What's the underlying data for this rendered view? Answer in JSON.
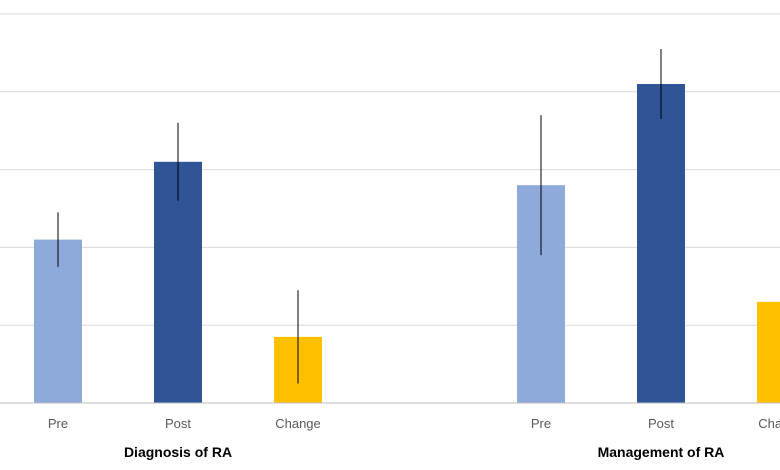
{
  "chart_data": {
    "type": "bar",
    "groups": [
      {
        "label": "Diagnosis of RA",
        "categories": [
          "Pre",
          "Post",
          "Change"
        ],
        "values": [
          2.1,
          3.1,
          0.85
        ],
        "error": [
          0.35,
          0.5,
          0.6
        ]
      },
      {
        "label": "Management of RA",
        "categories": [
          "Pre",
          "Post",
          "Change"
        ],
        "values": [
          2.8,
          4.1,
          1.3
        ],
        "error": [
          0.9,
          0.45,
          0
        ]
      }
    ],
    "colors": {
      "Pre": "#8eaadb",
      "Post": "#2f5597",
      "Change": "#ffc000",
      "error_bar": "#000000",
      "grid": "#d9d9d9",
      "axis": "#bfbfbf"
    },
    "ylim": [
      0,
      5
    ],
    "grid": true,
    "title": "",
    "xlabel": "",
    "ylabel": ""
  }
}
